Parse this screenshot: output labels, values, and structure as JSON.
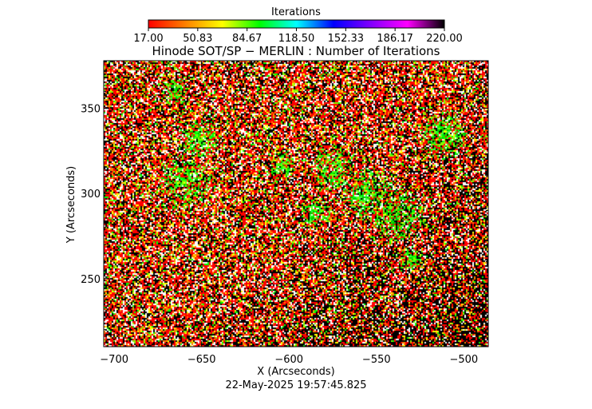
{
  "colorbar": {
    "title": "Iterations",
    "tick_labels": [
      "17.00",
      "50.83",
      "84.67",
      "118.50",
      "152.33",
      "186.17",
      "220.00"
    ],
    "min": 17.0,
    "max": 220.0,
    "colormap": [
      "#ff0000",
      "#ff8000",
      "#ffff00",
      "#00ff00",
      "#00ffff",
      "#0000ff",
      "#8000ff",
      "#ff00ff",
      "#000000"
    ]
  },
  "footer": {
    "timestamp": "22-May-2025 19:57:45.825"
  },
  "chart_data": {
    "type": "heatmap",
    "title": "Hinode SOT/SP − MERLIN : Number of Iterations",
    "xlabel": "X (Arcseconds)",
    "ylabel": "Y (Arcseconds)",
    "xlim": [
      -706,
      -486
    ],
    "ylim": [
      210,
      378
    ],
    "x_ticks": [
      -700,
      -650,
      -600,
      -550,
      -500
    ],
    "y_ticks": [
      250,
      300,
      350
    ],
    "x_tick_labels": [
      "−700",
      "−650",
      "−600",
      "−550",
      "−500"
    ],
    "y_tick_labels": [
      "250",
      "300",
      "350"
    ],
    "pixel_palette": [
      "#ff0000",
      "#000000",
      "#ffffff",
      "#ffff00",
      "#ff8000",
      "#80ff00",
      "#00ff00"
    ],
    "palette_weights": [
      0.33,
      0.27,
      0.17,
      0.06,
      0.09,
      0.05,
      0.03
    ],
    "green_patches_data_units": [
      {
        "x": -665,
        "y": 360,
        "r": 8
      },
      {
        "x": -652,
        "y": 333,
        "r": 12
      },
      {
        "x": -660,
        "y": 308,
        "r": 15
      },
      {
        "x": -604,
        "y": 318,
        "r": 8
      },
      {
        "x": -575,
        "y": 315,
        "r": 13
      },
      {
        "x": -555,
        "y": 300,
        "r": 15
      },
      {
        "x": -538,
        "y": 288,
        "r": 15
      },
      {
        "x": -512,
        "y": 335,
        "r": 14
      },
      {
        "x": -530,
        "y": 262,
        "r": 7
      },
      {
        "x": -585,
        "y": 290,
        "r": 9
      }
    ]
  }
}
